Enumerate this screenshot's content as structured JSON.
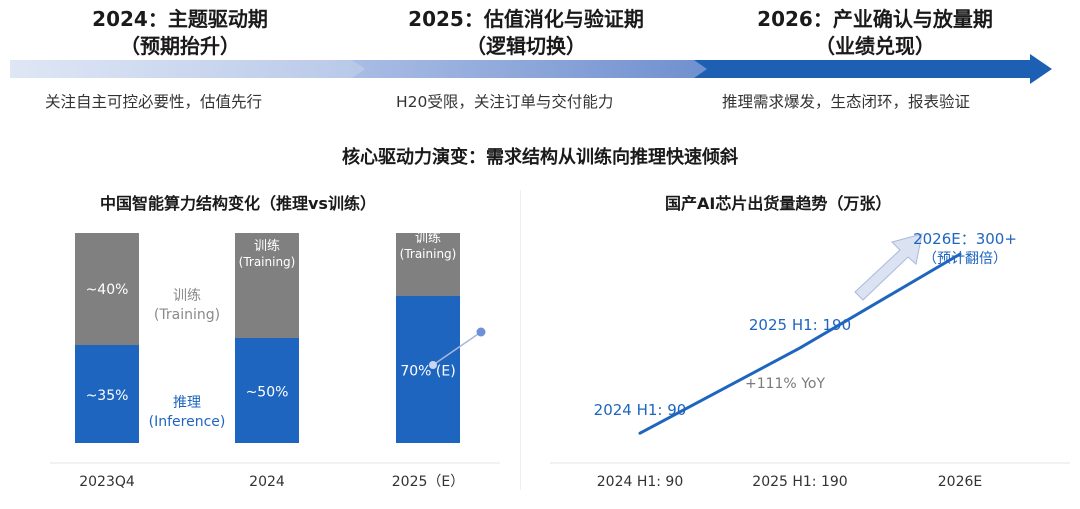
{
  "timeline": {
    "phases": [
      {
        "title": "2024：主题驱动期",
        "subtitle": "（预期抬升）",
        "desc": "关注自主可控必要性，估值先行"
      },
      {
        "title": "2025：估值消化与验证期",
        "subtitle": "（逻辑切换）",
        "desc": "H20受限，关注订单与交付能力"
      },
      {
        "title": "2026：产业确认与放量期",
        "subtitle": "（业绩兑现）",
        "desc": "推理需求爆发，生态闭环，报表验证"
      }
    ],
    "colors": {
      "light": "#c5d3ec",
      "mid": "#8aa4d8",
      "dark": "#1d5fb3"
    }
  },
  "section_title": "核心驱动力演变：需求结构从训练向推理快速倾斜",
  "chart_data": [
    {
      "type": "bar",
      "stacked": true,
      "title": "中国智能算力结构变化（推理vs训练）",
      "categories": [
        "2023Q4",
        "2024",
        "2025（E）"
      ],
      "series": [
        {
          "name": "推理 (Inference)",
          "values": [
            35,
            50,
            70
          ],
          "color": "#1e65c0"
        },
        {
          "name": "训练 (Training)",
          "values": [
            40,
            50,
            30
          ],
          "color": "#808080"
        }
      ],
      "bar_labels": {
        "inference": [
          "~35%",
          "~50%",
          "70% (E)"
        ],
        "training": [
          "~40%",
          "",
          ""
        ]
      },
      "inline_legend": {
        "training_cn": "训练",
        "training_en": "(Training)",
        "inference_cn": "推理",
        "inference_en": "(Inference)"
      }
    },
    {
      "type": "line",
      "title": "国产AI芯片出货量趋势（万张）",
      "categories": [
        "2024 H1: 90",
        "2025 H1: 190",
        "2026E"
      ],
      "values": [
        90,
        190,
        300
      ],
      "color": "#1e65c0",
      "annotations": {
        "p1": "2024 H1: 90",
        "p2": "2025 H1: 190",
        "growth": "+111% YoY",
        "p3_line1": "2026E：300+",
        "p3_line2": "（预计翻倍）"
      }
    }
  ]
}
